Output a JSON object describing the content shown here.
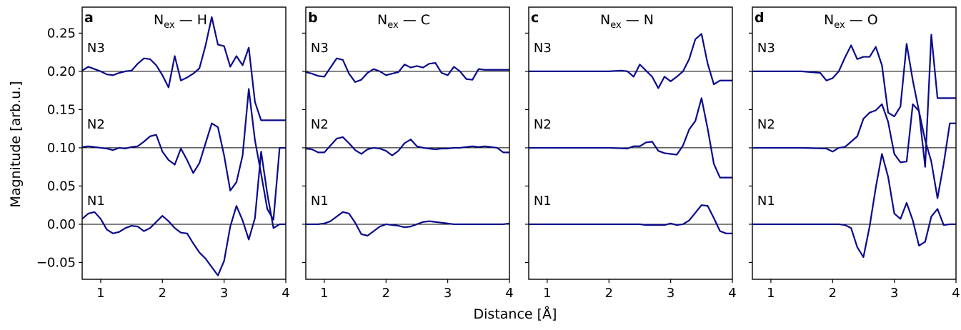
{
  "figure": {
    "ylabel": "Magnitude [arb.u.]",
    "xlabel": "Distance [Å]",
    "line_color": "#0a0a8c",
    "baseline_color": "#000000"
  },
  "chart_data": [
    {
      "type": "line",
      "panel_letter": "a",
      "title": {
        "main": "N",
        "sub": "ex",
        "rest": " — H"
      },
      "xlim": [
        0.7,
        4.0
      ],
      "ylim": [
        -0.072,
        0.284
      ],
      "xticks": [
        1,
        2,
        3,
        4
      ],
      "yticks": [
        -0.05,
        0.0,
        0.05,
        0.1,
        0.15,
        0.2,
        0.25
      ],
      "ytick_labels": [
        "−0.05",
        "0.00",
        "0.05",
        "0.10",
        "0.15",
        "0.20",
        "0.25"
      ],
      "show_ytick_labels": true,
      "grid": false,
      "baselines": [
        0.0,
        0.1,
        0.2
      ],
      "series_labels": [
        {
          "text": "N1",
          "x": 0.78,
          "y": 0.025
        },
        {
          "text": "N2",
          "x": 0.78,
          "y": 0.125
        },
        {
          "text": "N3",
          "x": 0.78,
          "y": 0.225
        }
      ],
      "series": [
        {
          "name": "N1",
          "x": [
            0.7,
            0.8,
            0.9,
            1.0,
            1.1,
            1.2,
            1.3,
            1.4,
            1.5,
            1.6,
            1.7,
            1.8,
            1.9,
            2.0,
            2.1,
            2.2,
            2.3,
            2.4,
            2.5,
            2.6,
            2.7,
            2.8,
            2.9,
            3.0,
            3.1,
            3.2,
            3.3,
            3.4,
            3.5,
            3.6,
            3.7,
            3.8,
            3.9,
            4.0
          ],
          "y": [
            0.007,
            0.014,
            0.016,
            0.007,
            -0.007,
            -0.012,
            -0.01,
            -0.005,
            -0.002,
            -0.003,
            -0.009,
            -0.005,
            0.003,
            0.011,
            0.004,
            -0.005,
            -0.011,
            -0.012,
            -0.025,
            -0.037,
            -0.045,
            -0.056,
            -0.067,
            -0.048,
            -0.003,
            0.024,
            0.005,
            -0.02,
            0.008,
            0.095,
            0.04,
            -0.005,
            0.0,
            0.0
          ]
        },
        {
          "name": "N2",
          "x": [
            0.7,
            0.8,
            0.9,
            1.0,
            1.1,
            1.2,
            1.3,
            1.4,
            1.5,
            1.6,
            1.7,
            1.8,
            1.9,
            2.0,
            2.1,
            2.2,
            2.3,
            2.4,
            2.5,
            2.6,
            2.7,
            2.8,
            2.9,
            3.0,
            3.1,
            3.2,
            3.3,
            3.4,
            3.5,
            3.6,
            3.7,
            3.8,
            3.9,
            4.0
          ],
          "y": [
            0.101,
            0.102,
            0.101,
            0.1,
            0.099,
            0.097,
            0.1,
            0.099,
            0.101,
            0.102,
            0.108,
            0.115,
            0.117,
            0.095,
            0.084,
            0.078,
            0.099,
            0.084,
            0.067,
            0.08,
            0.106,
            0.132,
            0.127,
            0.09,
            0.044,
            0.055,
            0.09,
            0.177,
            0.11,
            0.066,
            0.02,
            0.006,
            0.1,
            0.1
          ]
        },
        {
          "name": "N3",
          "x": [
            0.7,
            0.8,
            0.9,
            1.0,
            1.1,
            1.2,
            1.3,
            1.4,
            1.5,
            1.6,
            1.7,
            1.8,
            1.9,
            2.0,
            2.1,
            2.2,
            2.3,
            2.4,
            2.5,
            2.6,
            2.7,
            2.8,
            2.9,
            3.0,
            3.1,
            3.2,
            3.3,
            3.4,
            3.5,
            3.6,
            3.7,
            3.8,
            3.9,
            4.0
          ],
          "y": [
            0.201,
            0.206,
            0.203,
            0.2,
            0.196,
            0.195,
            0.198,
            0.2,
            0.201,
            0.21,
            0.217,
            0.216,
            0.208,
            0.195,
            0.179,
            0.22,
            0.188,
            0.192,
            0.197,
            0.204,
            0.234,
            0.271,
            0.235,
            0.233,
            0.206,
            0.22,
            0.208,
            0.231,
            0.16,
            0.136,
            0.136,
            0.136,
            0.136,
            0.136
          ]
        }
      ]
    },
    {
      "type": "line",
      "panel_letter": "b",
      "title": {
        "main": "N",
        "sub": "ex",
        "rest": " — C"
      },
      "xlim": [
        0.7,
        4.0
      ],
      "ylim": [
        -0.072,
        0.284
      ],
      "xticks": [
        1,
        2,
        3,
        4
      ],
      "yticks": [
        -0.05,
        0.0,
        0.05,
        0.1,
        0.15,
        0.2,
        0.25
      ],
      "ytick_labels": [],
      "show_ytick_labels": false,
      "grid": false,
      "baselines": [
        0.0,
        0.1,
        0.2
      ],
      "series_labels": [
        {
          "text": "N1",
          "x": 0.78,
          "y": 0.025
        },
        {
          "text": "N2",
          "x": 0.78,
          "y": 0.125
        },
        {
          "text": "N3",
          "x": 0.78,
          "y": 0.225
        }
      ],
      "series": [
        {
          "name": "N1",
          "x": [
            0.7,
            0.8,
            0.9,
            1.0,
            1.1,
            1.2,
            1.3,
            1.4,
            1.5,
            1.6,
            1.7,
            1.8,
            1.9,
            2.0,
            2.1,
            2.2,
            2.3,
            2.4,
            2.5,
            2.6,
            2.7,
            2.8,
            2.9,
            3.0,
            3.1,
            3.2,
            3.3,
            3.4,
            3.5,
            3.6,
            3.7,
            3.8,
            3.9,
            4.0
          ],
          "y": [
            0.0,
            0.0,
            0.0,
            0.001,
            0.004,
            0.01,
            0.016,
            0.014,
            0.002,
            -0.013,
            -0.015,
            -0.009,
            -0.003,
            0.0,
            -0.001,
            -0.002,
            -0.004,
            -0.003,
            0.0,
            0.003,
            0.004,
            0.003,
            0.002,
            0.001,
            0.0,
            0.0,
            0.0,
            0.0,
            0.0,
            0.0,
            0.0,
            0.0,
            0.0,
            0.001
          ]
        },
        {
          "name": "N2",
          "x": [
            0.7,
            0.8,
            0.9,
            1.0,
            1.1,
            1.2,
            1.3,
            1.4,
            1.5,
            1.6,
            1.7,
            1.8,
            1.9,
            2.0,
            2.1,
            2.2,
            2.3,
            2.4,
            2.5,
            2.6,
            2.7,
            2.8,
            2.9,
            3.0,
            3.1,
            3.2,
            3.3,
            3.4,
            3.5,
            3.6,
            3.7,
            3.8,
            3.9,
            4.0
          ],
          "y": [
            0.099,
            0.098,
            0.094,
            0.094,
            0.103,
            0.112,
            0.114,
            0.106,
            0.097,
            0.092,
            0.098,
            0.1,
            0.099,
            0.096,
            0.09,
            0.096,
            0.106,
            0.111,
            0.102,
            0.1,
            0.099,
            0.098,
            0.099,
            0.099,
            0.1,
            0.1,
            0.101,
            0.102,
            0.101,
            0.102,
            0.101,
            0.1,
            0.094,
            0.094
          ]
        },
        {
          "name": "N3",
          "x": [
            0.7,
            0.8,
            0.9,
            1.0,
            1.1,
            1.2,
            1.3,
            1.4,
            1.5,
            1.6,
            1.7,
            1.8,
            1.9,
            2.0,
            2.1,
            2.2,
            2.3,
            2.4,
            2.5,
            2.6,
            2.7,
            2.8,
            2.9,
            3.0,
            3.1,
            3.2,
            3.3,
            3.4,
            3.5,
            3.6,
            3.7,
            3.8,
            3.9,
            4.0
          ],
          "y": [
            0.199,
            0.197,
            0.194,
            0.193,
            0.205,
            0.217,
            0.215,
            0.197,
            0.186,
            0.189,
            0.198,
            0.203,
            0.2,
            0.195,
            0.197,
            0.199,
            0.209,
            0.205,
            0.207,
            0.205,
            0.21,
            0.211,
            0.198,
            0.195,
            0.206,
            0.2,
            0.19,
            0.189,
            0.203,
            0.202,
            0.202,
            0.202,
            0.202,
            0.202
          ]
        }
      ]
    },
    {
      "type": "line",
      "panel_letter": "c",
      "title": {
        "main": "N",
        "sub": "ex",
        "rest": " — N"
      },
      "xlim": [
        0.7,
        4.0
      ],
      "ylim": [
        -0.072,
        0.284
      ],
      "xticks": [
        1,
        2,
        3,
        4
      ],
      "yticks": [
        -0.05,
        0.0,
        0.05,
        0.1,
        0.15,
        0.2,
        0.25
      ],
      "ytick_labels": [],
      "show_ytick_labels": false,
      "grid": false,
      "baselines": [
        0.0,
        0.1,
        0.2
      ],
      "series_labels": [
        {
          "text": "N1",
          "x": 0.78,
          "y": 0.025
        },
        {
          "text": "N2",
          "x": 0.78,
          "y": 0.125
        },
        {
          "text": "N3",
          "x": 0.78,
          "y": 0.225
        }
      ],
      "series": [
        {
          "name": "N1",
          "x": [
            0.7,
            1.0,
            1.5,
            2.0,
            2.3,
            2.5,
            2.6,
            2.7,
            2.8,
            2.9,
            3.0,
            3.1,
            3.2,
            3.3,
            3.4,
            3.5,
            3.6,
            3.7,
            3.8,
            3.9,
            4.0
          ],
          "y": [
            0.0,
            0.0,
            0.0,
            0.0,
            0.0,
            0.0,
            -0.001,
            -0.001,
            -0.001,
            -0.001,
            0.001,
            -0.001,
            0.0,
            0.005,
            0.015,
            0.025,
            0.024,
            0.008,
            -0.009,
            -0.012,
            -0.012
          ]
        },
        {
          "name": "N2",
          "x": [
            0.7,
            1.0,
            1.5,
            2.0,
            2.3,
            2.4,
            2.5,
            2.6,
            2.7,
            2.8,
            2.9,
            3.0,
            3.1,
            3.2,
            3.3,
            3.4,
            3.5,
            3.6,
            3.7,
            3.8,
            3.9,
            4.0
          ],
          "y": [
            0.1,
            0.1,
            0.1,
            0.1,
            0.099,
            0.102,
            0.102,
            0.107,
            0.108,
            0.096,
            0.093,
            0.092,
            0.091,
            0.103,
            0.124,
            0.135,
            0.165,
            0.125,
            0.079,
            0.061,
            0.061,
            0.061
          ]
        },
        {
          "name": "N3",
          "x": [
            0.7,
            1.0,
            1.5,
            2.0,
            2.2,
            2.3,
            2.4,
            2.5,
            2.6,
            2.7,
            2.8,
            2.9,
            3.0,
            3.1,
            3.2,
            3.3,
            3.4,
            3.5,
            3.6,
            3.7,
            3.8,
            3.9,
            4.0
          ],
          "y": [
            0.2,
            0.2,
            0.2,
            0.2,
            0.201,
            0.2,
            0.193,
            0.209,
            0.201,
            0.193,
            0.178,
            0.193,
            0.187,
            0.193,
            0.2,
            0.216,
            0.242,
            0.249,
            0.21,
            0.183,
            0.188,
            0.188,
            0.188
          ]
        }
      ]
    },
    {
      "type": "line",
      "panel_letter": "d",
      "title": {
        "main": "N",
        "sub": "ex",
        "rest": " — O"
      },
      "xlim": [
        0.7,
        4.0
      ],
      "ylim": [
        -0.072,
        0.284
      ],
      "xticks": [
        1,
        2,
        3,
        4
      ],
      "yticks": [
        -0.05,
        0.0,
        0.05,
        0.1,
        0.15,
        0.2,
        0.25
      ],
      "ytick_labels": [],
      "show_ytick_labels": false,
      "grid": false,
      "baselines": [
        0.0,
        0.1,
        0.2
      ],
      "series_labels": [
        {
          "text": "N1",
          "x": 0.78,
          "y": 0.025
        },
        {
          "text": "N2",
          "x": 0.78,
          "y": 0.125
        },
        {
          "text": "N3",
          "x": 0.78,
          "y": 0.225
        }
      ],
      "series": [
        {
          "name": "N1",
          "x": [
            0.7,
            1.0,
            1.5,
            2.0,
            2.1,
            2.2,
            2.3,
            2.4,
            2.5,
            2.6,
            2.7,
            2.8,
            2.9,
            3.0,
            3.1,
            3.2,
            3.3,
            3.4,
            3.5,
            3.6,
            3.7,
            3.8,
            3.9,
            4.0
          ],
          "y": [
            0.0,
            0.0,
            0.0,
            0.0,
            0.0,
            -0.001,
            -0.005,
            -0.03,
            -0.043,
            -0.003,
            0.048,
            0.092,
            0.062,
            0.014,
            0.007,
            0.028,
            0.005,
            -0.028,
            -0.023,
            0.01,
            0.02,
            -0.001,
            0.0,
            0.0
          ]
        },
        {
          "name": "N2",
          "x": [
            0.7,
            1.0,
            1.5,
            1.9,
            2.0,
            2.1,
            2.2,
            2.3,
            2.4,
            2.5,
            2.6,
            2.7,
            2.8,
            2.9,
            3.0,
            3.1,
            3.2,
            3.3,
            3.4,
            3.5,
            3.6,
            3.7,
            3.8,
            3.9,
            4.0
          ],
          "y": [
            0.1,
            0.1,
            0.1,
            0.099,
            0.095,
            0.1,
            0.101,
            0.108,
            0.115,
            0.138,
            0.146,
            0.149,
            0.157,
            0.134,
            0.092,
            0.081,
            0.082,
            0.157,
            0.148,
            0.11,
            0.082,
            0.034,
            0.079,
            0.132,
            0.132
          ]
        },
        {
          "name": "N3",
          "x": [
            0.7,
            1.0,
            1.5,
            1.8,
            1.9,
            2.0,
            2.1,
            2.2,
            2.3,
            2.4,
            2.5,
            2.6,
            2.7,
            2.8,
            2.9,
            3.0,
            3.1,
            3.2,
            3.3,
            3.4,
            3.5,
            3.6,
            3.7,
            3.8,
            3.9,
            4.0
          ],
          "y": [
            0.2,
            0.2,
            0.2,
            0.198,
            0.188,
            0.191,
            0.2,
            0.218,
            0.234,
            0.216,
            0.219,
            0.219,
            0.232,
            0.208,
            0.146,
            0.141,
            0.154,
            0.236,
            0.188,
            0.148,
            0.075,
            0.248,
            0.165,
            0.165,
            0.165,
            0.165
          ]
        }
      ]
    }
  ]
}
